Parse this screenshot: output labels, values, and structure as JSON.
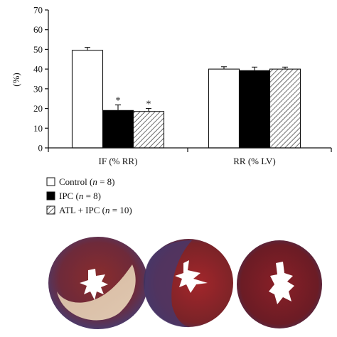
{
  "chart_data": {
    "type": "bar",
    "ylabel": "(%)",
    "ylim": [
      0,
      70
    ],
    "yticks": [
      "0",
      "10",
      "20",
      "30",
      "40",
      "50",
      "60",
      "70"
    ],
    "categories": [
      "IF (% RR)",
      "RR (% LV)"
    ],
    "series": [
      {
        "name": "Control",
        "n_label": "(n = 8)",
        "pattern": "white",
        "values": [
          49.5,
          40.0
        ],
        "errors": [
          1.5,
          1.2
        ],
        "significance": [
          "",
          ""
        ]
      },
      {
        "name": "IPC",
        "n_label": "(n = 8)",
        "pattern": "black",
        "values": [
          19.0,
          39.2
        ],
        "errors": [
          2.8,
          1.8
        ],
        "significance": [
          "*",
          ""
        ]
      },
      {
        "name": "ATL + IPC",
        "n_label": "(n = 10)",
        "pattern": "hatched",
        "values": [
          18.5,
          40.0
        ],
        "errors": [
          1.5,
          1.0
        ],
        "significance": [
          "*",
          ""
        ]
      }
    ],
    "grid": false,
    "legend": "bottom-left"
  },
  "legend_parts": [
    {
      "label": "Control (",
      "n": "n",
      "rest": " = 8)"
    },
    {
      "label": "IPC (",
      "n": "n",
      "rest": " = 8)"
    },
    {
      "label": "ATL + IPC (",
      "n": "n",
      "rest": " = 10)"
    }
  ]
}
